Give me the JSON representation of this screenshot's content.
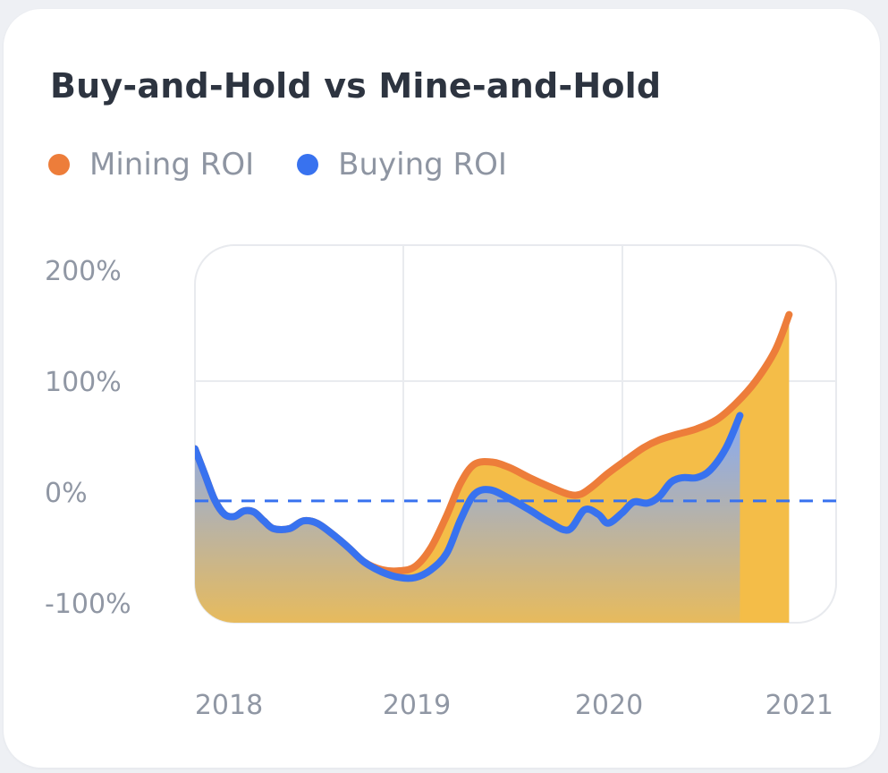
{
  "card": {
    "title": "Buy-and-Hold vs Mine-and-Hold"
  },
  "chart_data": {
    "type": "area",
    "title": "Buy-and-Hold vs Mine-and-Hold",
    "xlabel": "",
    "ylabel": "",
    "x_ticks": [
      "2018",
      "2019",
      "2020",
      "2021"
    ],
    "y_ticks": [
      "200%",
      "100%",
      "0%",
      "-100%"
    ],
    "xlim": [
      2017.8,
      2021.05
    ],
    "ylim": [
      -116,
      220
    ],
    "grid": true,
    "legend_position": "top-left",
    "reference_line": {
      "y": -8,
      "style": "dashed"
    },
    "series": [
      {
        "name": "Mining ROI",
        "color": "#ed7d3a",
        "fill": "#f4bd48",
        "points": [
          [
            2017.8,
            39
          ],
          [
            2017.85,
            16
          ],
          [
            2017.9,
            -7
          ],
          [
            2017.95,
            -20
          ],
          [
            2018.0,
            -22
          ],
          [
            2018.05,
            -17
          ],
          [
            2018.1,
            -18
          ],
          [
            2018.15,
            -26
          ],
          [
            2018.2,
            -33
          ],
          [
            2018.28,
            -33
          ],
          [
            2018.35,
            -26
          ],
          [
            2018.42,
            -28
          ],
          [
            2018.5,
            -38
          ],
          [
            2018.58,
            -50
          ],
          [
            2018.66,
            -63
          ],
          [
            2018.75,
            -70
          ],
          [
            2018.84,
            -71
          ],
          [
            2018.92,
            -67
          ],
          [
            2019.0,
            -50
          ],
          [
            2019.08,
            -21
          ],
          [
            2019.15,
            8
          ],
          [
            2019.22,
            25
          ],
          [
            2019.31,
            27
          ],
          [
            2019.4,
            22
          ],
          [
            2019.5,
            13
          ],
          [
            2019.6,
            5
          ],
          [
            2019.7,
            -2
          ],
          [
            2019.76,
            -2
          ],
          [
            2019.82,
            5
          ],
          [
            2019.9,
            17
          ],
          [
            2020.0,
            30
          ],
          [
            2020.08,
            40
          ],
          [
            2020.16,
            47
          ],
          [
            2020.25,
            52
          ],
          [
            2020.35,
            57
          ],
          [
            2020.45,
            65
          ],
          [
            2020.55,
            80
          ],
          [
            2020.65,
            100
          ],
          [
            2020.75,
            128
          ],
          [
            2020.82,
            160
          ]
        ]
      },
      {
        "name": "Buying ROI",
        "color": "#3872ef",
        "fill": "#86aaf5",
        "points": [
          [
            2017.8,
            39
          ],
          [
            2017.85,
            16
          ],
          [
            2017.9,
            -7
          ],
          [
            2017.95,
            -20
          ],
          [
            2018.0,
            -22
          ],
          [
            2018.05,
            -17
          ],
          [
            2018.1,
            -18
          ],
          [
            2018.15,
            -26
          ],
          [
            2018.2,
            -33
          ],
          [
            2018.28,
            -33
          ],
          [
            2018.35,
            -26
          ],
          [
            2018.42,
            -28
          ],
          [
            2018.5,
            -38
          ],
          [
            2018.58,
            -50
          ],
          [
            2018.66,
            -63
          ],
          [
            2018.75,
            -72
          ],
          [
            2018.84,
            -77
          ],
          [
            2018.92,
            -77
          ],
          [
            2019.0,
            -70
          ],
          [
            2019.08,
            -55
          ],
          [
            2019.15,
            -25
          ],
          [
            2019.22,
            -2
          ],
          [
            2019.3,
            2
          ],
          [
            2019.4,
            -6
          ],
          [
            2019.5,
            -16
          ],
          [
            2019.6,
            -27
          ],
          [
            2019.7,
            -34
          ],
          [
            2019.78,
            -16
          ],
          [
            2019.85,
            -20
          ],
          [
            2019.9,
            -28
          ],
          [
            2019.97,
            -19
          ],
          [
            2020.03,
            -9
          ],
          [
            2020.1,
            -10
          ],
          [
            2020.16,
            -4
          ],
          [
            2020.22,
            9
          ],
          [
            2020.28,
            13
          ],
          [
            2020.35,
            13
          ],
          [
            2020.42,
            20
          ],
          [
            2020.5,
            40
          ],
          [
            2020.57,
            69
          ]
        ]
      }
    ]
  }
}
